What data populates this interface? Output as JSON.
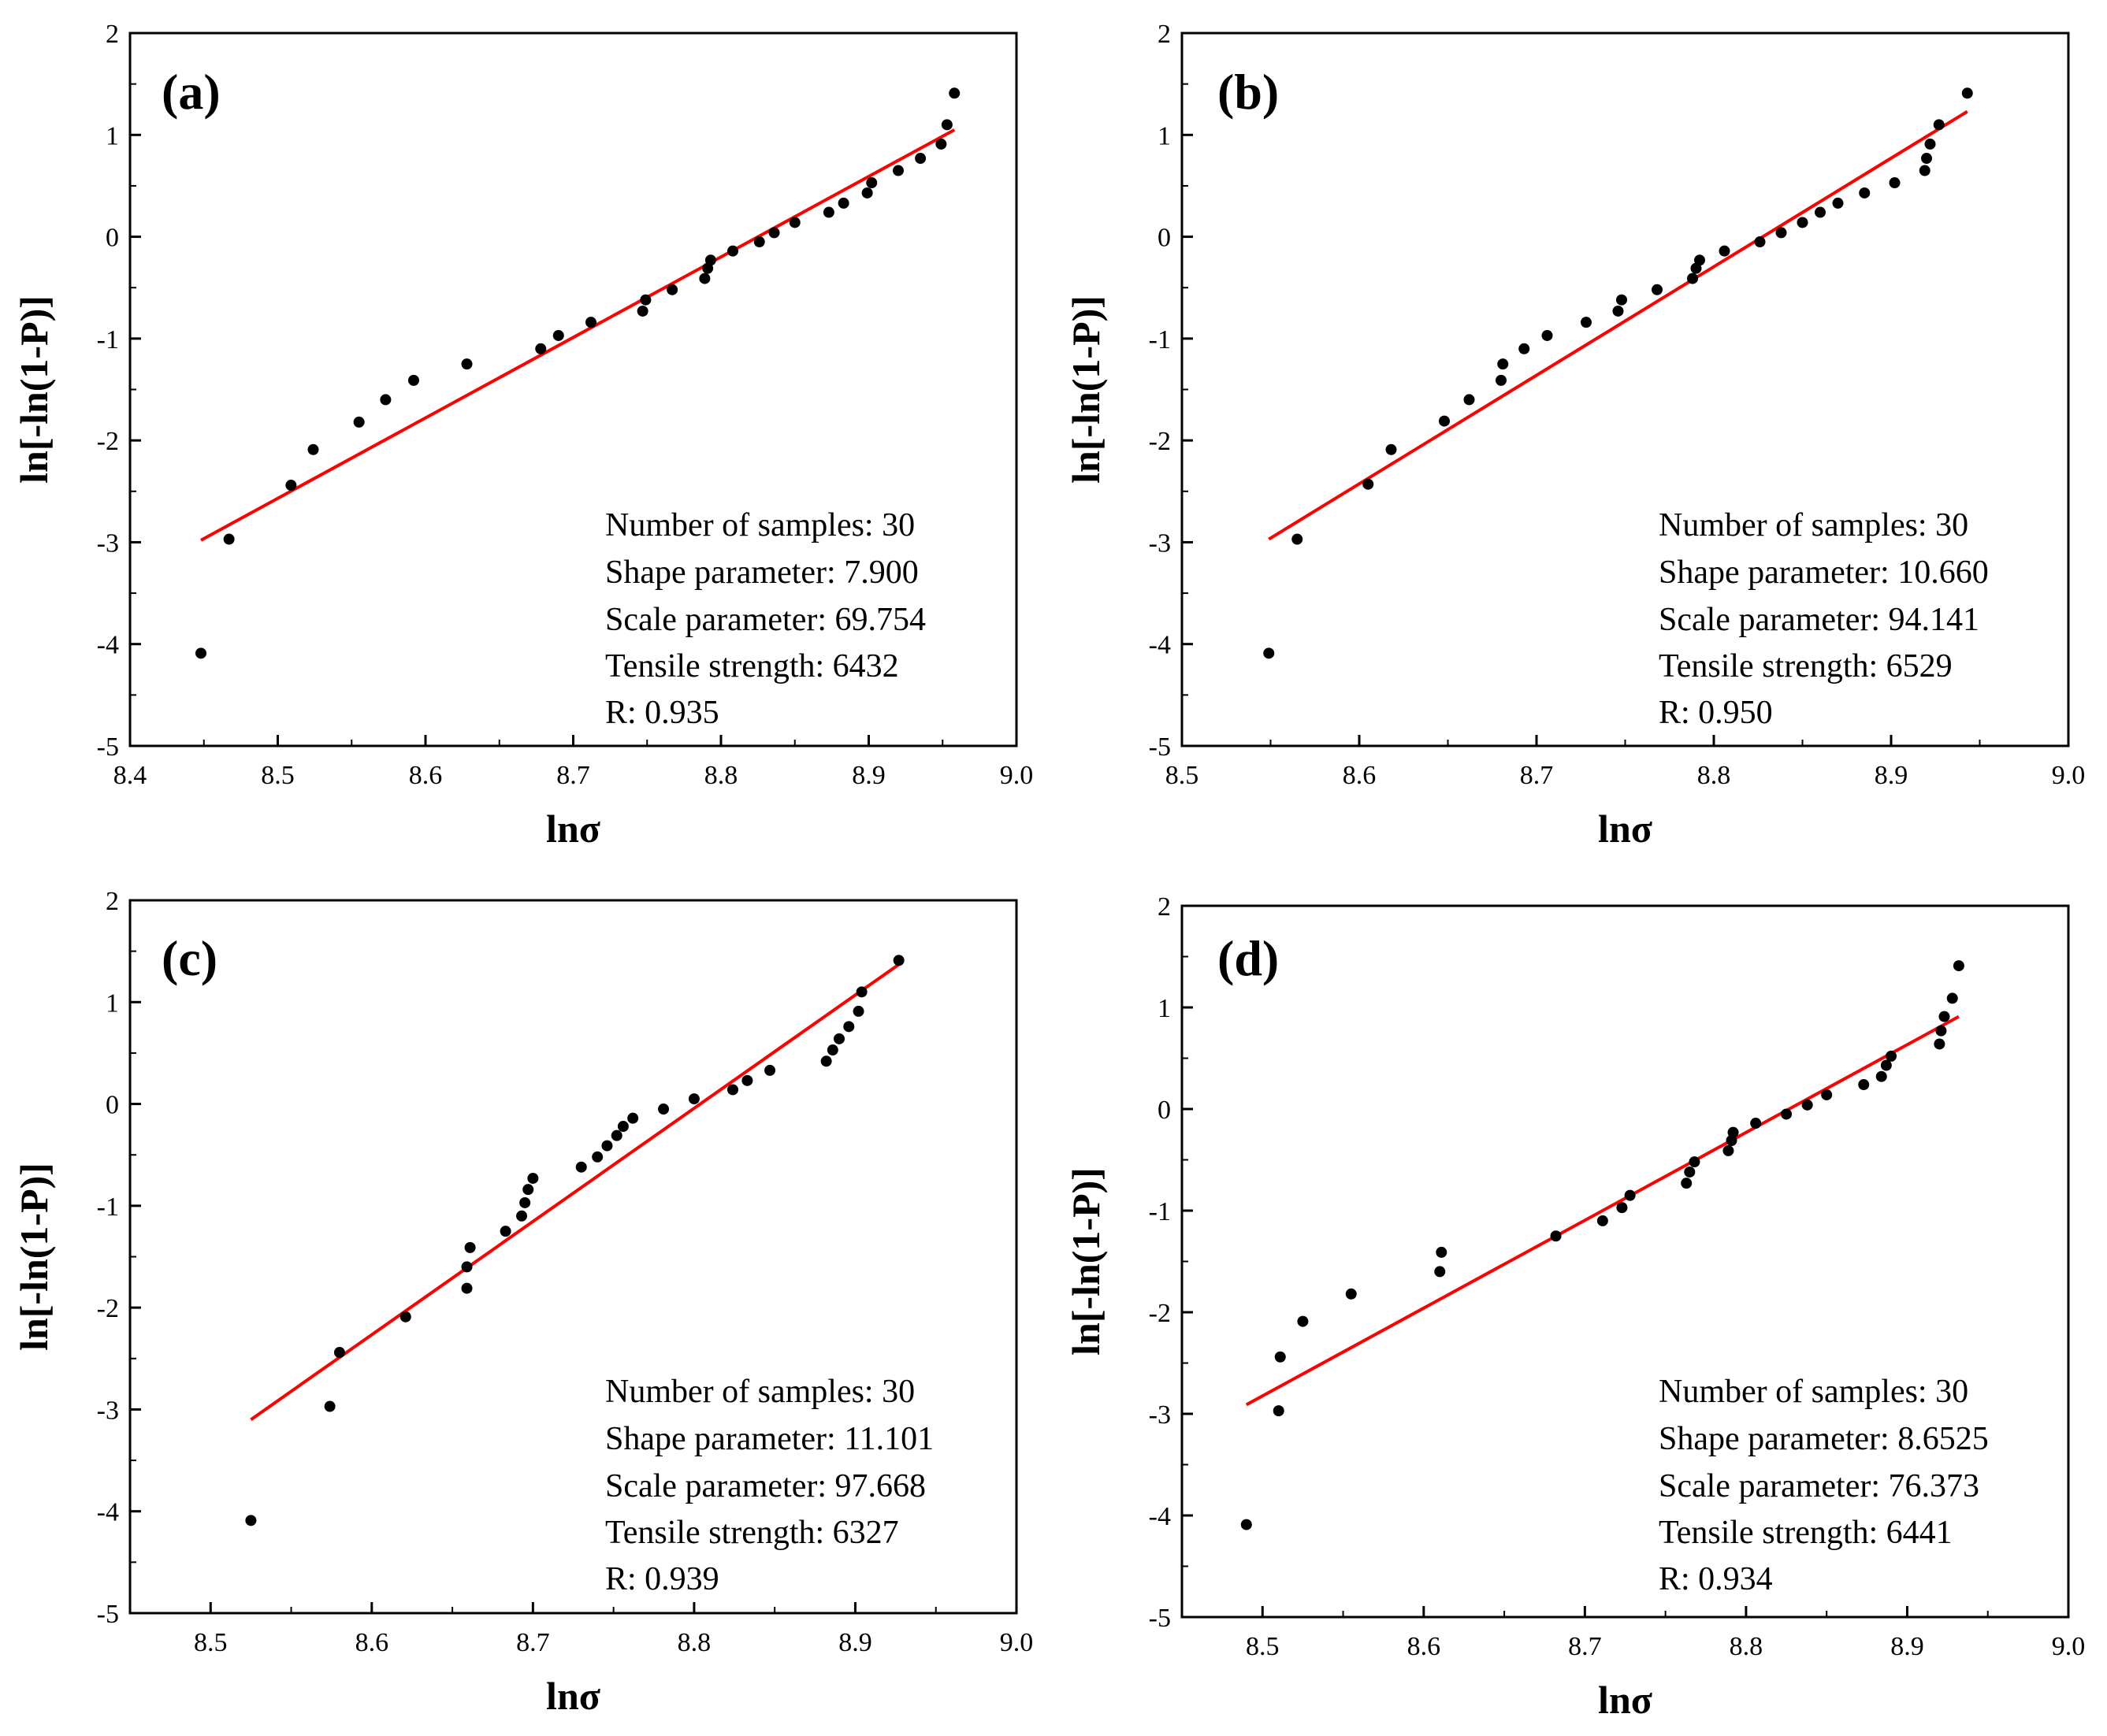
{
  "figure": {
    "panels": [
      {
        "id": "a",
        "panel_label": "(a)",
        "info": {
          "samples": "Number of samples: 30",
          "shape": "Shape parameter:  7.900",
          "scale": "Scale parameter: 69.754",
          "tensile": "Tensile strength: 6432",
          "r": "R: 0.935"
        }
      },
      {
        "id": "b",
        "panel_label": "(b)",
        "info": {
          "samples": "Number of samples: 30",
          "shape": "Shape parameter:  10.660",
          "scale": "Scale parameter: 94.141",
          "tensile": "Tensile strength: 6529",
          "r": "R: 0.950"
        }
      },
      {
        "id": "c",
        "panel_label": "(c)",
        "info": {
          "samples": "Number of samples: 30",
          "shape": "Shape parameter:  11.101",
          "scale": "Scale parameter: 97.668",
          "tensile": "Tensile strength: 6327",
          "r": "R: 0.939"
        }
      },
      {
        "id": "d",
        "panel_label": "(d)",
        "info": {
          "samples": "Number of samples: 30",
          "shape": "Shape parameter:  8.6525",
          "scale": "Scale parameter: 76.373",
          "tensile": "Tensile strength: 6441",
          "r": "R: 0.934"
        }
      }
    ]
  },
  "chart_data": [
    {
      "panel": "(a)",
      "type": "scatter",
      "title": "",
      "xlabel": "lnσ",
      "ylabel": "ln[-ln(1-P)]",
      "xlim": [
        8.4,
        9.0
      ],
      "ylim": [
        -5,
        2
      ],
      "xticks": [
        "8.4",
        "8.5",
        "8.6",
        "8.7",
        "8.8",
        "8.9",
        "9.0"
      ],
      "yticks": [
        "-5",
        "-4",
        "-3",
        "-2",
        "-1",
        "0",
        "1",
        "2"
      ],
      "marker_color": "#000000",
      "fit_color": "#ff0000",
      "points": [
        [
          8.448,
          -4.09
        ],
        [
          8.467,
          -2.97
        ],
        [
          8.509,
          -2.44
        ],
        [
          8.524,
          -2.09
        ],
        [
          8.555,
          -1.82
        ],
        [
          8.573,
          -1.6
        ],
        [
          8.592,
          -1.41
        ],
        [
          8.628,
          -1.25
        ],
        [
          8.678,
          -1.1
        ],
        [
          8.69,
          -0.97
        ],
        [
          8.712,
          -0.84
        ],
        [
          8.747,
          -0.73
        ],
        [
          8.749,
          -0.62
        ],
        [
          8.767,
          -0.52
        ],
        [
          8.789,
          -0.41
        ],
        [
          8.791,
          -0.31
        ],
        [
          8.793,
          -0.23
        ],
        [
          8.808,
          -0.14
        ],
        [
          8.826,
          -0.05
        ],
        [
          8.836,
          0.04
        ],
        [
          8.85,
          0.14
        ],
        [
          8.873,
          0.24
        ],
        [
          8.883,
          0.33
        ],
        [
          8.899,
          0.43
        ],
        [
          8.902,
          0.53
        ],
        [
          8.92,
          0.65
        ],
        [
          8.935,
          0.77
        ],
        [
          8.949,
          0.91
        ],
        [
          8.953,
          1.1
        ],
        [
          8.958,
          1.41
        ]
      ],
      "fit_line": [
        [
          8.448,
          -2.98
        ],
        [
          8.958,
          1.05
        ]
      ]
    },
    {
      "panel": "(b)",
      "type": "scatter",
      "title": "",
      "xlabel": "lnσ",
      "ylabel": "ln[-ln(1-P)]",
      "xlim": [
        8.5,
        9.0
      ],
      "ylim": [
        -5,
        2
      ],
      "xticks": [
        "8.5",
        "8.6",
        "8.7",
        "8.8",
        "8.9",
        "9.0"
      ],
      "yticks": [
        "-5",
        "-4",
        "-3",
        "-2",
        "-1",
        "0",
        "1",
        "2"
      ],
      "marker_color": "#000000",
      "fit_color": "#ff0000",
      "points": [
        [
          8.549,
          -4.09
        ],
        [
          8.565,
          -2.97
        ],
        [
          8.605,
          -2.43
        ],
        [
          8.618,
          -2.09
        ],
        [
          8.648,
          -1.81
        ],
        [
          8.662,
          -1.6
        ],
        [
          8.68,
          -1.41
        ],
        [
          8.681,
          -1.25
        ],
        [
          8.693,
          -1.1
        ],
        [
          8.706,
          -0.97
        ],
        [
          8.728,
          -0.84
        ],
        [
          8.746,
          -0.73
        ],
        [
          8.748,
          -0.62
        ],
        [
          8.768,
          -0.52
        ],
        [
          8.788,
          -0.41
        ],
        [
          8.79,
          -0.31
        ],
        [
          8.792,
          -0.23
        ],
        [
          8.806,
          -0.14
        ],
        [
          8.826,
          -0.05
        ],
        [
          8.838,
          0.04
        ],
        [
          8.85,
          0.14
        ],
        [
          8.86,
          0.24
        ],
        [
          8.87,
          0.33
        ],
        [
          8.885,
          0.43
        ],
        [
          8.902,
          0.53
        ],
        [
          8.919,
          0.65
        ],
        [
          8.92,
          0.77
        ],
        [
          8.922,
          0.91
        ],
        [
          8.927,
          1.1
        ],
        [
          8.943,
          1.41
        ]
      ],
      "fit_line": [
        [
          8.549,
          -2.97
        ],
        [
          8.943,
          1.23
        ]
      ]
    },
    {
      "panel": "(c)",
      "type": "scatter",
      "title": "",
      "xlabel": "lnσ",
      "ylabel": "ln[-ln(1-P)]",
      "xlim": [
        8.45,
        9.0
      ],
      "ylim": [
        -5,
        2
      ],
      "xticks": [
        "8.5",
        "8.6",
        "8.7",
        "8.8",
        "8.9",
        "9.0"
      ],
      "yticks": [
        "-5",
        "-4",
        "-3",
        "-2",
        "-1",
        "0",
        "1",
        "2"
      ],
      "marker_color": "#000000",
      "fit_color": "#ff0000",
      "points": [
        [
          8.525,
          -4.09
        ],
        [
          8.574,
          -2.97
        ],
        [
          8.58,
          -2.44
        ],
        [
          8.621,
          -2.09
        ],
        [
          8.659,
          -1.81
        ],
        [
          8.659,
          -1.6
        ],
        [
          8.661,
          -1.41
        ],
        [
          8.683,
          -1.25
        ],
        [
          8.693,
          -1.1
        ],
        [
          8.695,
          -0.97
        ],
        [
          8.697,
          -0.84
        ],
        [
          8.7,
          -0.73
        ],
        [
          8.73,
          -0.62
        ],
        [
          8.74,
          -0.52
        ],
        [
          8.746,
          -0.41
        ],
        [
          8.752,
          -0.31
        ],
        [
          8.756,
          -0.22
        ],
        [
          8.762,
          -0.14
        ],
        [
          8.781,
          -0.05
        ],
        [
          8.8,
          0.05
        ],
        [
          8.824,
          0.14
        ],
        [
          8.833,
          0.23
        ],
        [
          8.847,
          0.33
        ],
        [
          8.882,
          0.42
        ],
        [
          8.886,
          0.53
        ],
        [
          8.89,
          0.64
        ],
        [
          8.896,
          0.76
        ],
        [
          8.902,
          0.91
        ],
        [
          8.904,
          1.1
        ],
        [
          8.927,
          1.41
        ]
      ],
      "fit_line": [
        [
          8.525,
          -3.1
        ],
        [
          8.927,
          1.37
        ]
      ]
    },
    {
      "panel": "(d)",
      "type": "scatter",
      "title": "",
      "xlabel": "lnσ",
      "ylabel": "ln[-ln(1-P)]",
      "xlim": [
        8.45,
        9.0
      ],
      "ylim": [
        -5,
        2
      ],
      "xticks": [
        "8.5",
        "8.6",
        "8.7",
        "8.8",
        "8.9",
        "9.0"
      ],
      "yticks": [
        "-5",
        "-4",
        "-3",
        "-2",
        "-1",
        "0",
        "1",
        "2"
      ],
      "marker_color": "#000000",
      "fit_color": "#ff0000",
      "points": [
        [
          8.49,
          -4.09
        ],
        [
          8.51,
          -2.97
        ],
        [
          8.511,
          -2.44
        ],
        [
          8.525,
          -2.09
        ],
        [
          8.555,
          -1.82
        ],
        [
          8.61,
          -1.6
        ],
        [
          8.611,
          -1.41
        ],
        [
          8.682,
          -1.25
        ],
        [
          8.711,
          -1.1
        ],
        [
          8.723,
          -0.97
        ],
        [
          8.728,
          -0.85
        ],
        [
          8.763,
          -0.73
        ],
        [
          8.765,
          -0.62
        ],
        [
          8.768,
          -0.52
        ],
        [
          8.789,
          -0.41
        ],
        [
          8.791,
          -0.31
        ],
        [
          8.792,
          -0.23
        ],
        [
          8.806,
          -0.14
        ],
        [
          8.825,
          -0.05
        ],
        [
          8.838,
          0.04
        ],
        [
          8.85,
          0.14
        ],
        [
          8.873,
          0.24
        ],
        [
          8.884,
          0.32
        ],
        [
          8.887,
          0.43
        ],
        [
          8.89,
          0.52
        ],
        [
          8.92,
          0.64
        ],
        [
          8.921,
          0.77
        ],
        [
          8.923,
          0.91
        ],
        [
          8.928,
          1.09
        ],
        [
          8.932,
          1.41
        ]
      ],
      "fit_line": [
        [
          8.49,
          -2.91
        ],
        [
          8.932,
          0.91
        ]
      ]
    }
  ]
}
